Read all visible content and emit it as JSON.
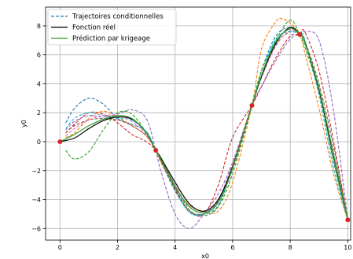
{
  "chart_data": {
    "type": "line",
    "xlabel": "x0",
    "ylabel": "y0",
    "xlim": [
      -0.5,
      10.1
    ],
    "ylim": [
      -6.8,
      9.3
    ],
    "xticks": [
      0,
      2,
      4,
      6,
      8,
      10
    ],
    "yticks": [
      -6,
      -4,
      -2,
      0,
      2,
      4,
      6,
      8
    ],
    "grid": true,
    "legend_position": "top-left",
    "legend": [
      {
        "label": "Trajectoires conditionnelles",
        "style": "dashed",
        "color": "#1f77b4"
      },
      {
        "label": "Fonction réel",
        "style": "solid",
        "color": "#000000"
      },
      {
        "label": "Prédiction par krigeage",
        "style": "solid",
        "color": "#2ca02c"
      }
    ],
    "observations": {
      "color": "#d62728",
      "x": [
        0,
        3.33,
        6.67,
        8.33,
        10
      ],
      "y": [
        0,
        -0.6,
        2.5,
        7.4,
        -5.4
      ]
    },
    "series": [
      {
        "name": "Fonction réel",
        "style": "solid",
        "color": "#000000",
        "x": [
          0,
          0.5,
          1,
          1.5,
          2,
          2.5,
          3,
          3.33,
          3.5,
          4,
          4.5,
          5,
          5.5,
          6,
          6.67,
          7,
          7.5,
          8,
          8.33,
          8.5,
          9,
          9.5,
          10
        ],
        "y": [
          0,
          0.25,
          0.9,
          1.45,
          1.7,
          1.55,
          0.6,
          -0.6,
          -1.1,
          -2.8,
          -4.3,
          -4.8,
          -4.0,
          -1.7,
          2.5,
          4.5,
          6.8,
          7.9,
          7.4,
          6.9,
          3.6,
          -0.9,
          -5.4
        ]
      },
      {
        "name": "Prédiction par krigeage",
        "style": "solid",
        "color": "#2ca02c",
        "x": [
          0,
          0.5,
          1,
          1.5,
          2,
          2.5,
          3,
          3.33,
          3.5,
          4,
          4.5,
          5,
          5.5,
          6,
          6.67,
          7,
          7.5,
          8,
          8.33,
          8.5,
          9,
          9.5,
          10
        ],
        "y": [
          0,
          0.5,
          1.1,
          1.55,
          1.8,
          1.6,
          0.6,
          -0.6,
          -1.2,
          -3.1,
          -4.5,
          -4.9,
          -4.2,
          -1.8,
          2.5,
          4.6,
          6.9,
          7.8,
          7.4,
          6.9,
          3.7,
          -0.8,
          -5.4
        ]
      },
      {
        "style": "dashed",
        "color": "#1f77b4",
        "x": [
          0.2,
          0.5,
          1,
          1.5,
          2,
          2.5,
          3,
          3.33,
          3.5,
          4,
          4.5,
          5,
          5.5,
          6,
          6.67,
          7,
          7.5,
          8,
          8.33,
          8.5,
          9,
          9.5,
          10
        ],
        "y": [
          1.3,
          2.3,
          3.0,
          2.6,
          1.6,
          1.2,
          0.7,
          -0.6,
          -1.3,
          -3.4,
          -4.8,
          -5.0,
          -4.4,
          -1.8,
          2.5,
          4.9,
          7.3,
          7.9,
          7.4,
          6.9,
          3.6,
          -1.3,
          -5.4
        ]
      },
      {
        "style": "dashed",
        "color": "#ff7f0e",
        "x": [
          0.2,
          0.5,
          1,
          1.5,
          2,
          2.5,
          3,
          3.33,
          3.5,
          4,
          4.5,
          5,
          5.5,
          6,
          6.67,
          7,
          7.5,
          7.7,
          8,
          8.33,
          8.5,
          9,
          9.5,
          10
        ],
        "y": [
          0.3,
          0.6,
          1.6,
          2.1,
          1.7,
          1.1,
          0.4,
          -0.6,
          -1.4,
          -3.2,
          -4.4,
          -4.8,
          -4.8,
          -2.8,
          2.5,
          6.4,
          8.3,
          8.5,
          8.2,
          7.4,
          6.2,
          2.3,
          -2.2,
          -5.4
        ]
      },
      {
        "style": "dashed",
        "color": "#2ca02c",
        "x": [
          0.2,
          0.5,
          1,
          1.5,
          2,
          2.5,
          3,
          3.33,
          3.5,
          4,
          4.5,
          5,
          5.5,
          6,
          6.67,
          7,
          7.5,
          8,
          8.33,
          8.5,
          9,
          9.5,
          10
        ],
        "y": [
          -0.6,
          -1.2,
          -0.7,
          0.8,
          2.0,
          1.9,
          0.6,
          -0.6,
          -1.1,
          -3.0,
          -4.7,
          -5.1,
          -4.5,
          -2.2,
          2.5,
          4.9,
          7.0,
          8.4,
          7.4,
          6.6,
          3.4,
          -1.3,
          -5.4
        ]
      },
      {
        "style": "dashed",
        "color": "#d62728",
        "x": [
          0.2,
          0.5,
          1,
          1.5,
          2,
          2.5,
          3,
          3.33,
          3.5,
          4,
          4.5,
          5,
          5.5,
          6,
          6.67,
          7,
          7.5,
          8,
          8.33,
          8.5,
          9,
          9.5,
          10
        ],
        "y": [
          0.6,
          1.2,
          2.0,
          1.9,
          1.3,
          0.5,
          0.0,
          -0.6,
          -1.3,
          -3.3,
          -4.8,
          -5.0,
          -3.0,
          0.3,
          2.5,
          3.8,
          5.8,
          7.3,
          7.4,
          7.6,
          4.9,
          0.1,
          -5.4
        ]
      },
      {
        "style": "dashed",
        "color": "#9467bd",
        "x": [
          0.2,
          0.5,
          1,
          1.5,
          2,
          2.5,
          3,
          3.33,
          3.5,
          4,
          4.5,
          5,
          5.5,
          6,
          6.67,
          7,
          7.5,
          8,
          8.33,
          8.5,
          9,
          9.5,
          10
        ],
        "y": [
          0.8,
          1.4,
          1.8,
          1.7,
          1.9,
          2.2,
          1.6,
          -0.6,
          -2.0,
          -5.0,
          -6.0,
          -5.0,
          -3.6,
          -1.4,
          2.5,
          3.8,
          5.6,
          7.1,
          7.4,
          7.6,
          7.0,
          2.2,
          -5.4
        ]
      },
      {
        "style": "dashed",
        "color": "#8c564b",
        "x": [
          0.2,
          0.5,
          1,
          1.5,
          2,
          2.5,
          3,
          3.33,
          3.5,
          4,
          4.5,
          5,
          5.5,
          6,
          6.67,
          7,
          7.5,
          8,
          8.33,
          8.5,
          9,
          9.5,
          10
        ],
        "y": [
          0.6,
          1.1,
          1.5,
          1.6,
          1.5,
          1.1,
          0.4,
          -0.6,
          -1.3,
          -3.2,
          -4.8,
          -5.0,
          -4.1,
          -1.9,
          2.5,
          4.5,
          6.7,
          7.6,
          7.4,
          7.0,
          4.0,
          -0.3,
          -5.4
        ]
      },
      {
        "style": "dashed",
        "color": "#17becf",
        "x": [
          0.2,
          0.5,
          1,
          1.5,
          2,
          2.5,
          3,
          3.33,
          3.5,
          4,
          4.5,
          5,
          5.5,
          6,
          6.67,
          7,
          7.5,
          8,
          8.33,
          8.5,
          9,
          9.5,
          10
        ],
        "y": [
          0.9,
          1.6,
          2.0,
          1.8,
          1.6,
          1.5,
          0.7,
          -0.6,
          -1.2,
          -3.3,
          -4.9,
          -5.0,
          -4.2,
          -1.7,
          2.5,
          4.6,
          7.1,
          7.6,
          7.4,
          7.1,
          3.2,
          -1.8,
          -5.4
        ]
      },
      {
        "style": "dashed",
        "color": "#e377c2",
        "x": [
          0.2,
          0.5,
          1,
          1.5,
          2,
          2.5,
          3,
          3.33,
          3.5,
          4,
          4.5,
          5,
          5.5,
          6,
          6.67,
          7,
          7.5,
          8,
          8.33,
          8.5,
          9,
          9.5,
          10
        ],
        "y": [
          0.4,
          0.9,
          1.5,
          1.8,
          1.8,
          1.4,
          0.5,
          -0.6,
          -1.1,
          -3.0,
          -4.5,
          -4.9,
          -4.0,
          -1.5,
          2.5,
          4.4,
          6.6,
          7.7,
          7.4,
          6.9,
          3.5,
          -1.0,
          -5.4
        ]
      }
    ]
  }
}
